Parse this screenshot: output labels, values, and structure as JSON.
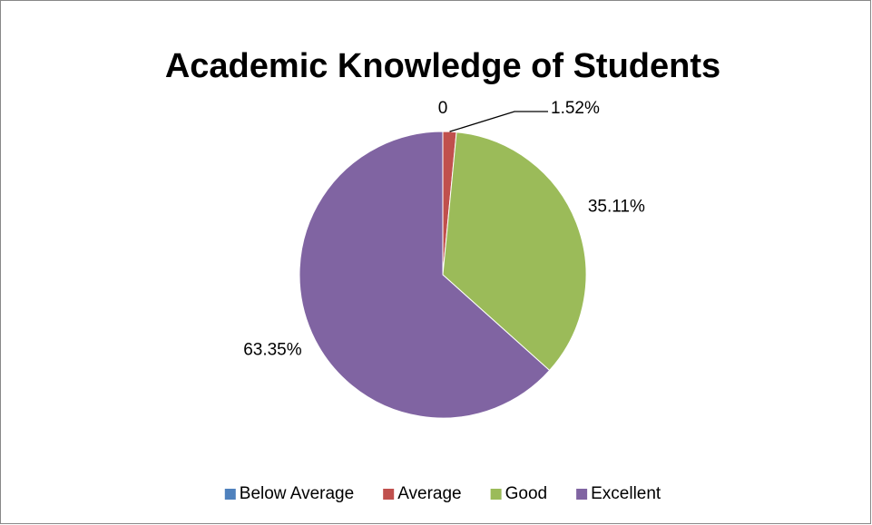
{
  "chart_data": {
    "type": "pie",
    "title": "Academic Knowledge of Students",
    "categories": [
      "Below Average",
      "Average",
      "Good",
      "Excellent"
    ],
    "values": [
      0,
      1.52,
      35.11,
      63.35
    ],
    "value_labels": [
      "0",
      "1.52%",
      "35.11%",
      "63.35%"
    ],
    "colors": [
      "#4f81bd",
      "#c0504d",
      "#9bbb59",
      "#8064a2"
    ],
    "legend": "bottom"
  }
}
